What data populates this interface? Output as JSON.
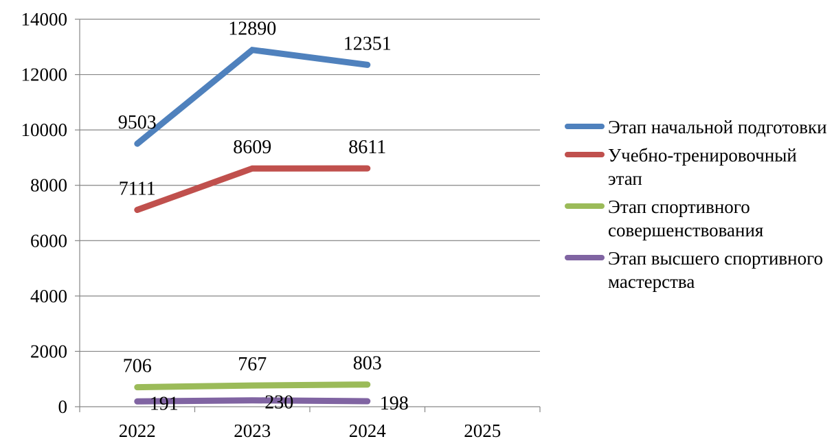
{
  "chart_data": {
    "type": "line",
    "categories": [
      "2022",
      "2023",
      "2024",
      "2025"
    ],
    "ylim": [
      0,
      14000
    ],
    "yticks": [
      0,
      2000,
      4000,
      6000,
      8000,
      10000,
      12000,
      14000
    ],
    "grid": true,
    "legend_position": "right",
    "series": [
      {
        "name": "Этап начальной подготовки",
        "color": "#4f81bd",
        "values": [
          9503,
          12890,
          12351,
          null
        ]
      },
      {
        "name": "Учебно-тренировочный этап",
        "color": "#c0504d",
        "values": [
          7111,
          8609,
          8611,
          null
        ]
      },
      {
        "name": "Этап спортивного совершенствования",
        "color": "#9bbb59",
        "values": [
          706,
          767,
          803,
          null
        ]
      },
      {
        "name": "Этап высшего спортивного мастерства",
        "color": "#8064a2",
        "values": [
          191,
          230,
          198,
          null
        ]
      }
    ]
  }
}
